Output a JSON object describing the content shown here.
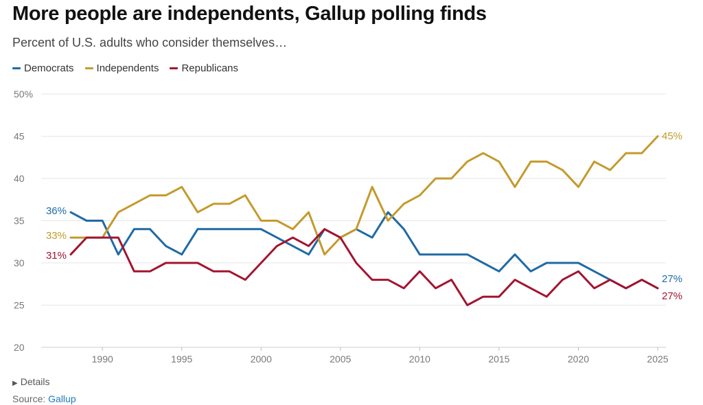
{
  "title": "More people are independents, Gallup polling finds",
  "subtitle": "Percent of U.S. adults who consider themselves…",
  "details_label": "Details",
  "source_label": "Source:",
  "source_name": "Gallup",
  "chart_data": {
    "type": "line",
    "x": [
      1988,
      1989,
      1990,
      1991,
      1992,
      1993,
      1994,
      1995,
      1996,
      1997,
      1998,
      1999,
      2000,
      2001,
      2002,
      2003,
      2004,
      2005,
      2006,
      2007,
      2008,
      2009,
      2010,
      2011,
      2012,
      2013,
      2014,
      2015,
      2016,
      2017,
      2018,
      2019,
      2020,
      2021,
      2022,
      2023,
      2024,
      2025
    ],
    "ylim": [
      20,
      50
    ],
    "yticks": [
      "20",
      "25",
      "30",
      "35",
      "40",
      "45",
      "50%"
    ],
    "xticks": [
      1990,
      1995,
      2000,
      2005,
      2010,
      2015,
      2020,
      2025
    ],
    "grid": true,
    "legend": "top-left",
    "series": [
      {
        "name": "Democrats",
        "color": "#1f6aa5",
        "values": [
          36,
          35,
          35,
          31,
          34,
          34,
          32,
          31,
          34,
          34,
          34,
          34,
          34,
          33,
          32,
          31,
          34,
          33,
          34,
          33,
          36,
          34,
          31,
          31,
          31,
          31,
          30,
          29,
          31,
          29,
          30,
          30,
          30,
          29,
          28,
          27,
          28,
          27
        ],
        "start_label": "36%",
        "end_label": "27%"
      },
      {
        "name": "Independents",
        "color": "#c49a2c",
        "values": [
          33,
          33,
          33,
          36,
          37,
          38,
          38,
          39,
          36,
          37,
          37,
          38,
          35,
          35,
          34,
          36,
          31,
          33,
          34,
          39,
          35,
          37,
          38,
          40,
          40,
          42,
          43,
          42,
          39,
          42,
          42,
          41,
          39,
          42,
          41,
          43,
          43,
          45
        ],
        "start_label": "33%",
        "end_label": "45%"
      },
      {
        "name": "Republicans",
        "color": "#a3142f",
        "values": [
          31,
          33,
          33,
          33,
          29,
          29,
          30,
          30,
          30,
          29,
          29,
          28,
          30,
          32,
          33,
          32,
          34,
          33,
          30,
          28,
          28,
          27,
          29,
          27,
          28,
          25,
          26,
          26,
          28,
          27,
          26,
          28,
          29,
          27,
          28,
          27,
          28,
          27
        ],
        "start_label": "31%",
        "end_label": "27%"
      }
    ]
  }
}
